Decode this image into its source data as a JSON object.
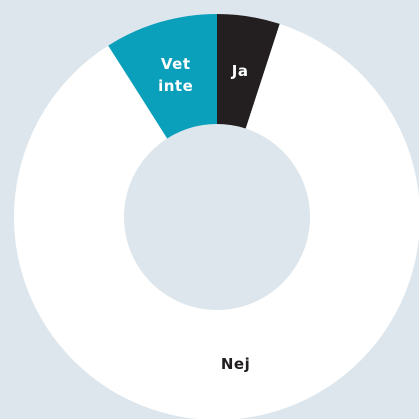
{
  "chart_data": {
    "type": "pie",
    "categories": [
      "Ja",
      "Nej",
      "Vet inte"
    ],
    "values": [
      5,
      86,
      9
    ],
    "colors": [
      "#231f20",
      "#ffffff",
      "#0a9fba"
    ],
    "donut": true
  }
}
